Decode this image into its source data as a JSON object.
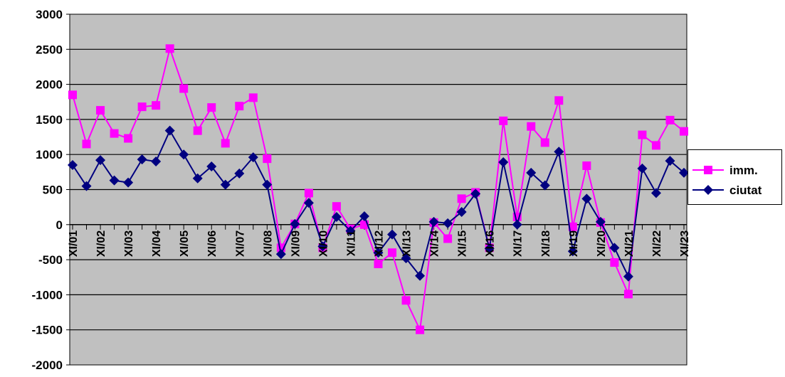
{
  "chart_data": {
    "type": "line",
    "title": "",
    "xlabel": "",
    "ylabel": "",
    "ylim": [
      -2000,
      3000
    ],
    "yticks": [
      -2000,
      -1500,
      -1000,
      -500,
      0,
      500,
      1000,
      1500,
      2000,
      2500,
      3000
    ],
    "grid": true,
    "legend_position": "right",
    "background_color": "#c0c0c0",
    "categories": [
      "XI/01",
      "",
      "XI/02",
      "",
      "XI/03",
      "",
      "XI/04",
      "",
      "XI/05",
      "",
      "XI/06",
      "",
      "XI/07",
      "",
      "XI/08",
      "",
      "XI/09",
      "",
      "XI/10",
      "",
      "XI/11",
      "",
      "XI/12",
      "",
      "XI/13",
      "",
      "XI/14",
      "",
      "XI/15",
      "",
      "XI/16",
      "",
      "XI/17",
      "",
      "XI/18",
      "",
      "XI/19",
      "",
      "XI/20",
      "",
      "XI/21",
      "",
      "XI/22",
      "",
      "XI/23"
    ],
    "series": [
      {
        "name": "imm.",
        "color": "#ff00ff",
        "marker": "square",
        "values": [
          1850,
          1150,
          1630,
          1300,
          1230,
          1680,
          1700,
          2510,
          1940,
          1340,
          1670,
          1160,
          1690,
          1810,
          940,
          -330,
          10,
          450,
          -330,
          260,
          -60,
          0,
          -560,
          -400,
          -1080,
          -1500,
          30,
          -200,
          370,
          460,
          -330,
          1480,
          110,
          1400,
          1170,
          1770,
          -30,
          840,
          30,
          -540,
          -990,
          1280,
          1130,
          1490,
          1330
        ]
      },
      {
        "name": "ciutat",
        "color": "#000080",
        "marker": "diamond",
        "values": [
          850,
          550,
          920,
          630,
          600,
          930,
          900,
          1340,
          1000,
          660,
          830,
          570,
          730,
          960,
          570,
          -420,
          10,
          310,
          -310,
          110,
          -90,
          120,
          -400,
          -140,
          -480,
          -730,
          40,
          20,
          180,
          440,
          -340,
          890,
          0,
          740,
          560,
          1040,
          -380,
          370,
          40,
          -330,
          -740,
          800,
          450,
          910,
          740
        ]
      }
    ]
  }
}
